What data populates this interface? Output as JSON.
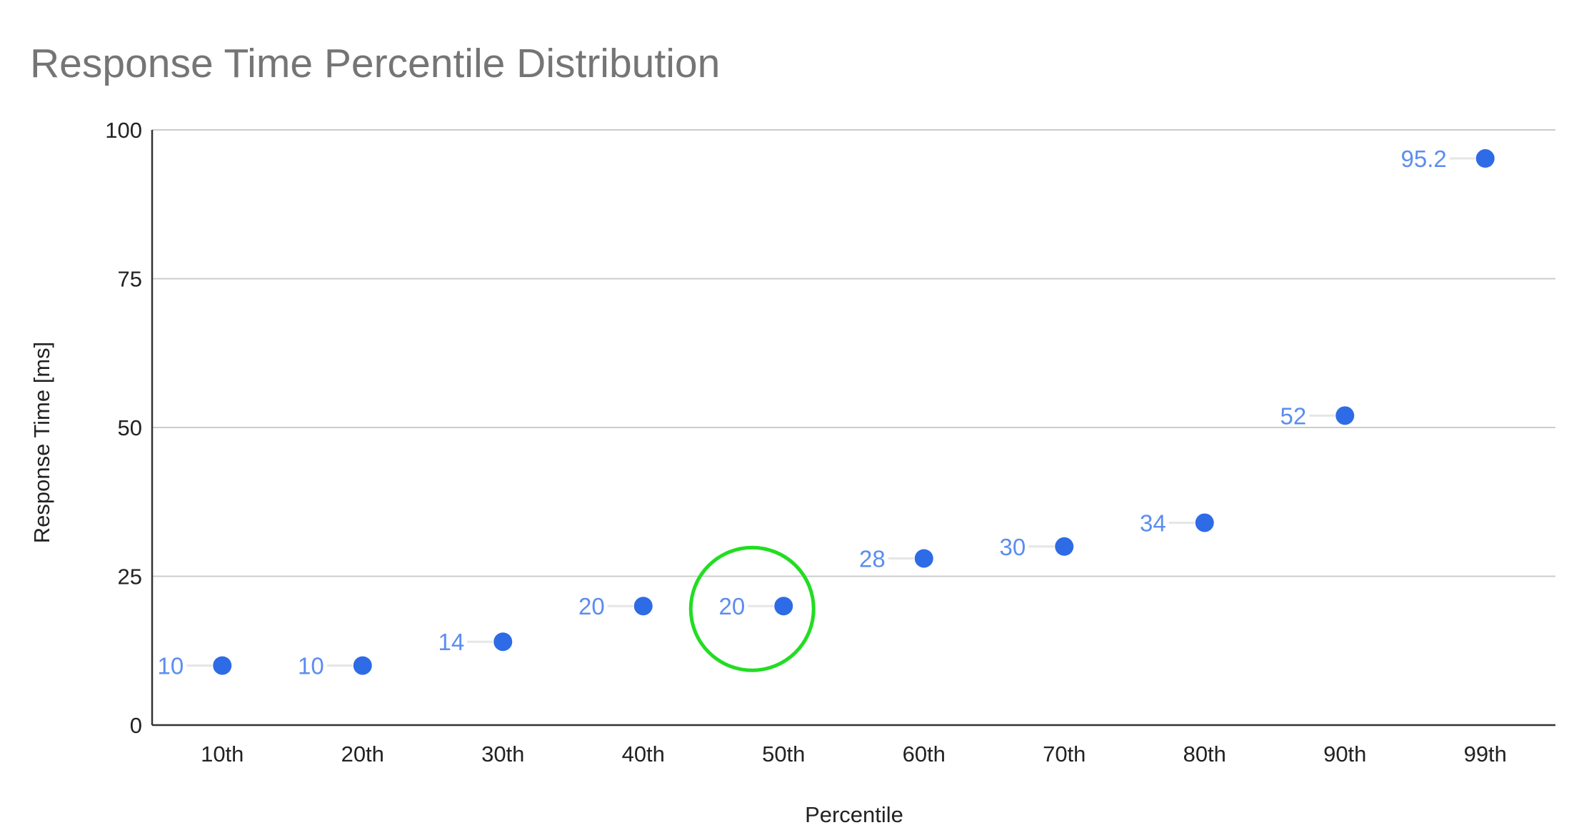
{
  "chart_data": {
    "type": "scatter",
    "title": "Response Time Percentile Distribution",
    "xlabel": "Percentile",
    "ylabel": "Response Time [ms]",
    "categories": [
      "10th",
      "20th",
      "30th",
      "40th",
      "50th",
      "60th",
      "70th",
      "80th",
      "90th",
      "99th"
    ],
    "values": [
      10,
      10,
      14,
      20,
      20,
      28,
      30,
      34,
      52,
      95.2
    ],
    "data_labels": [
      "10",
      "10",
      "14",
      "20",
      "20",
      "28",
      "30",
      "34",
      "52",
      "95.2"
    ],
    "ylim": [
      0,
      100
    ],
    "yticks": [
      "0",
      "25",
      "50",
      "75",
      "100"
    ],
    "grid": true,
    "legend": "none",
    "highlighted_category": "50th",
    "colors": {
      "points": "#2e6be6",
      "labels": "#5b8def",
      "highlight": "#22dd22",
      "grid": "#cccccc"
    }
  }
}
